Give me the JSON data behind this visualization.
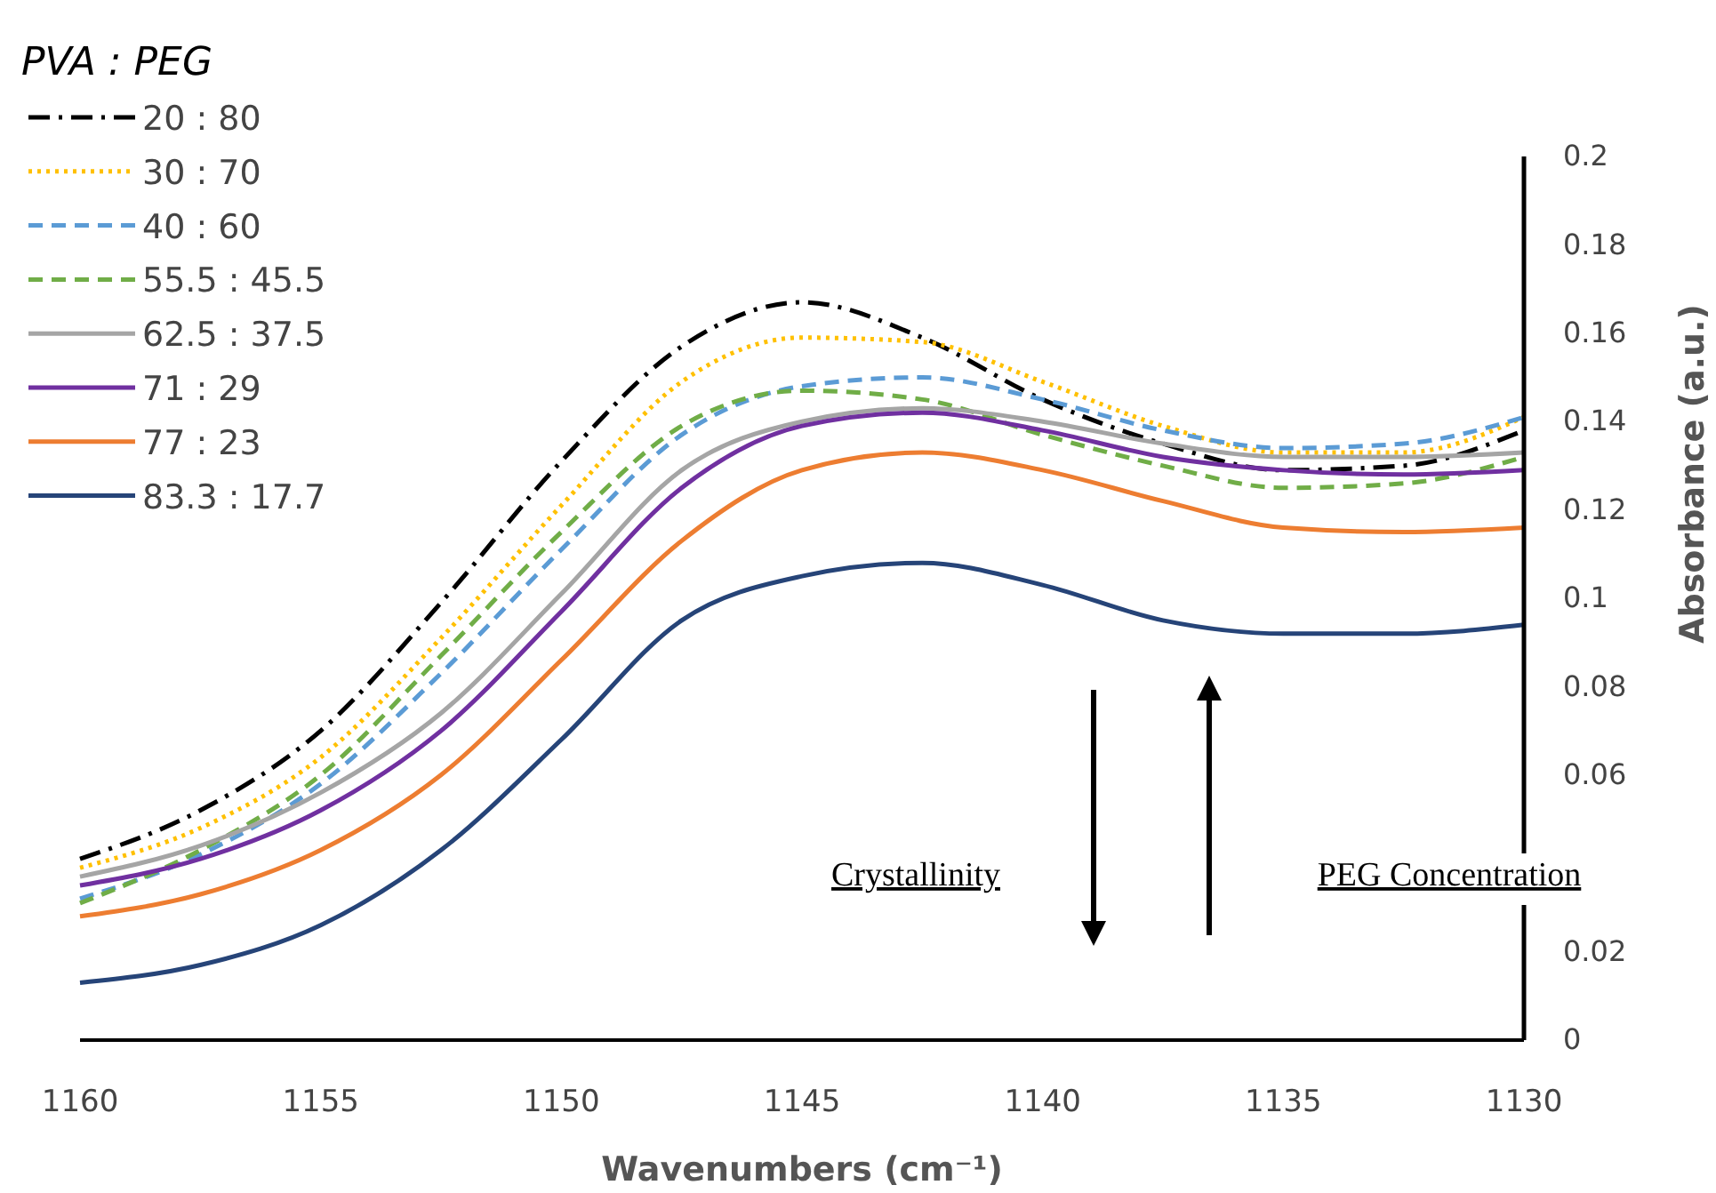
{
  "chart_data": {
    "type": "line",
    "xlabel": "Wavenumbers (cm⁻¹)",
    "ylabel": "Absorbance (a.u.)",
    "legend_title": "PVA : PEG",
    "legend": "top left",
    "grid": false,
    "xlim": [
      1160,
      1130
    ],
    "xticks": [
      1160,
      1155,
      1150,
      1145,
      1140,
      1135,
      1130
    ],
    "ylim": [
      0,
      0.2
    ],
    "yticks": [
      0,
      0.02,
      0.06,
      0.08,
      0.1,
      0.12,
      0.14,
      0.16,
      0.18,
      0.2
    ],
    "x": [
      1160,
      1157.5,
      1155,
      1152.5,
      1150,
      1147.5,
      1145,
      1142.5,
      1140,
      1137.5,
      1135,
      1132.5,
      1130
    ],
    "series": [
      {
        "name": "20 : 80",
        "color": "#000000",
        "line_style": "dashdot",
        "values": [
          0.041,
          0.052,
          0.07,
          0.099,
          0.131,
          0.157,
          0.167,
          0.159,
          0.145,
          0.135,
          0.129,
          0.13,
          0.138
        ]
      },
      {
        "name": "30 : 70",
        "color": "#ffc000",
        "line_style": "dotted",
        "values": [
          0.039,
          0.048,
          0.064,
          0.091,
          0.121,
          0.149,
          0.159,
          0.158,
          0.149,
          0.139,
          0.133,
          0.133,
          0.141
        ]
      },
      {
        "name": "40 : 60",
        "color": "#5b9bd5",
        "line_style": "dashed",
        "values": [
          0.032,
          0.042,
          0.058,
          0.083,
          0.111,
          0.137,
          0.148,
          0.15,
          0.145,
          0.138,
          0.134,
          0.135,
          0.141
        ]
      },
      {
        "name": "55.5 : 45.5",
        "color": "#70ad47",
        "line_style": "dashed",
        "values": [
          0.031,
          0.043,
          0.06,
          0.087,
          0.115,
          0.139,
          0.147,
          0.145,
          0.137,
          0.13,
          0.125,
          0.126,
          0.132
        ]
      },
      {
        "name": "62.5 : 37.5",
        "color": "#a5a5a5",
        "line_style": "solid",
        "values": [
          0.037,
          0.044,
          0.056,
          0.074,
          0.101,
          0.129,
          0.14,
          0.143,
          0.14,
          0.135,
          0.132,
          0.132,
          0.133
        ]
      },
      {
        "name": "71 : 29",
        "color": "#7030a0",
        "line_style": "solid",
        "values": [
          0.035,
          0.041,
          0.052,
          0.07,
          0.097,
          0.125,
          0.139,
          0.142,
          0.138,
          0.132,
          0.129,
          0.128,
          0.129
        ]
      },
      {
        "name": "77 : 23",
        "color": "#ed7d31",
        "line_style": "solid",
        "values": [
          0.028,
          0.033,
          0.043,
          0.06,
          0.086,
          0.113,
          0.129,
          0.133,
          0.129,
          0.122,
          0.116,
          0.115,
          0.116
        ]
      },
      {
        "name": "83.3 : 17.7",
        "color": "#264478",
        "line_style": "solid",
        "values": [
          0.013,
          0.017,
          0.026,
          0.043,
          0.068,
          0.095,
          0.105,
          0.108,
          0.103,
          0.095,
          0.092,
          0.092,
          0.094
        ]
      }
    ],
    "annotations": [
      "Crystallinity",
      "PEG Concentration"
    ]
  }
}
